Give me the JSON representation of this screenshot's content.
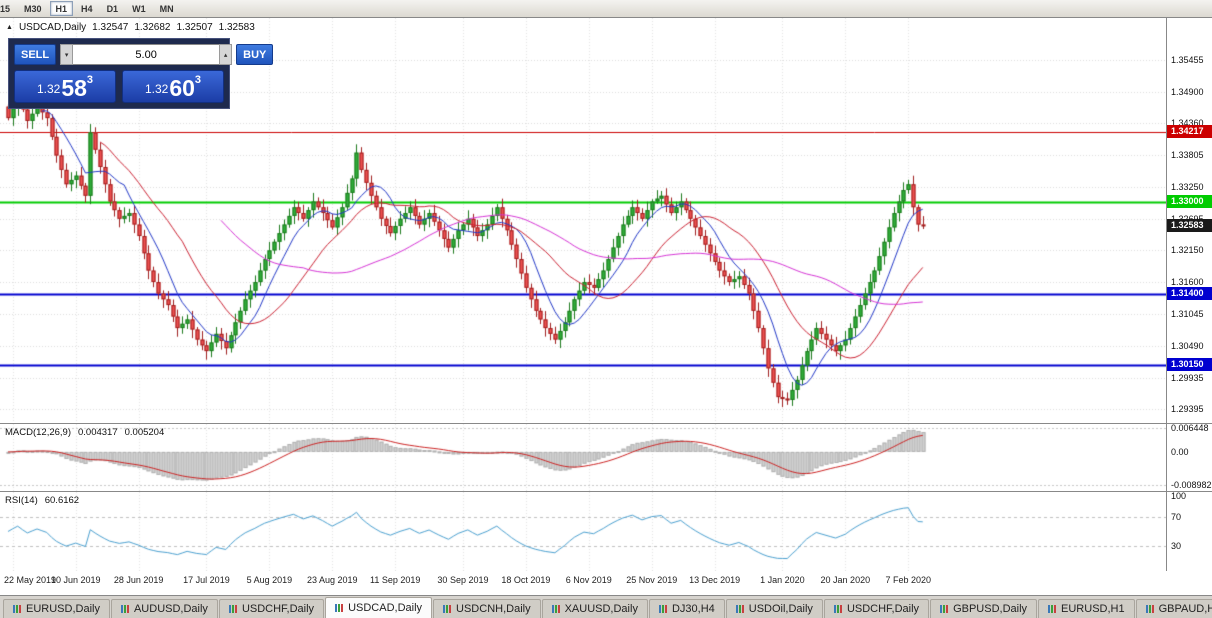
{
  "toolbar": {
    "timeframes": [
      {
        "label": "15",
        "active": false
      },
      {
        "label": "M30",
        "active": false
      },
      {
        "label": "H1",
        "active": true
      },
      {
        "label": "H4",
        "active": false
      },
      {
        "label": "D1",
        "active": false
      },
      {
        "label": "W1",
        "active": false
      },
      {
        "label": "MN",
        "active": false
      }
    ]
  },
  "chart_header": {
    "symbol": "USDCAD,Daily",
    "open": "1.32547",
    "high": "1.32682",
    "low": "1.32507",
    "close": "1.32583"
  },
  "trade_panel": {
    "sell_label": "SELL",
    "buy_label": "BUY",
    "volume": "5.00",
    "sell_price": {
      "base": "1.32",
      "big": "58",
      "sup": "3"
    },
    "buy_price": {
      "base": "1.32",
      "big": "60",
      "sup": "3"
    }
  },
  "tabs": [
    {
      "label": "EURUSD,Daily",
      "active": false
    },
    {
      "label": "AUDUSD,Daily",
      "active": false
    },
    {
      "label": "USDCHF,Daily",
      "active": false
    },
    {
      "label": "USDCAD,Daily",
      "active": true
    },
    {
      "label": "USDCNH,Daily",
      "active": false
    },
    {
      "label": "XAUUSD,Daily",
      "active": false
    },
    {
      "label": "DJ30,H4",
      "active": false
    },
    {
      "label": "USDOil,Daily",
      "active": false
    },
    {
      "label": "USDCHF,Daily",
      "active": false
    },
    {
      "label": "GBPUSD,Daily",
      "active": false
    },
    {
      "label": "EURUSD,H1",
      "active": false
    },
    {
      "label": "GBPAUD,H1",
      "active": false
    }
  ],
  "chart_data": [
    {
      "type": "candlestick",
      "title": "USDCAD,Daily",
      "price_range": {
        "top": 1.3619,
        "bottom": 1.2915
      },
      "bar_start_x": 8,
      "bar_spacing": 4.84,
      "y_ticks": [
        1.35455,
        1.349,
        1.3436,
        1.33805,
        1.3325,
        1.32695,
        1.3215,
        1.316,
        1.31045,
        1.3049,
        1.29935,
        1.29395
      ],
      "x_labels": [
        "22 May 2019",
        "10 Jun 2019",
        "28 Jun 2019",
        "17 Jul 2019",
        "5 Aug 2019",
        "23 Aug 2019",
        "11 Sep 2019",
        "30 Sep 2019",
        "18 Oct 2019",
        "6 Nov 2019",
        "25 Nov 2019",
        "13 Dec 2019",
        "1 Jan 2020",
        "20 Jan 2020",
        "7 Feb 2020"
      ],
      "levels": [
        {
          "price": 1.34217,
          "label": "1.34217",
          "color": "#cc0000",
          "width": 1
        },
        {
          "price": 1.33,
          "label": "1.33000",
          "color": "#00cc00",
          "width": 2
        },
        {
          "price": 1.314,
          "label": "1.31400",
          "color": "#0000d0",
          "width": 2
        },
        {
          "price": 1.3015,
          "label": "1.30150",
          "color": "#0000d0",
          "width": 2
        }
      ],
      "current_price": {
        "value": 1.32583,
        "label": "1.32583",
        "color": "#1a1a1a"
      },
      "moving_averages": [
        {
          "period": 8,
          "color": "#2238c8"
        },
        {
          "period": 20,
          "color": "#cc2233"
        },
        {
          "period": 45,
          "color": "#d633d6"
        }
      ],
      "up_color": "#2fae3a",
      "down_color": "#ef5050",
      "closes": [
        1.3445,
        1.34625,
        1.348,
        1.346,
        1.344,
        1.34525,
        1.3465,
        1.3455,
        1.3445,
        1.34125,
        1.338,
        1.3355,
        1.333,
        1.33375,
        1.3345,
        1.33275,
        1.331,
        1.342,
        1.339,
        1.336,
        1.333,
        1.33,
        1.3285,
        1.327,
        1.3275,
        1.328,
        1.326,
        1.324,
        1.321,
        1.318,
        1.316,
        1.314,
        1.313,
        1.312,
        1.31,
        1.308,
        1.30875,
        1.3095,
        1.30775,
        1.306,
        1.305,
        1.304,
        1.3055,
        1.307,
        1.30575,
        1.3045,
        1.30675,
        1.309,
        1.311,
        1.313,
        1.3145,
        1.316,
        1.318,
        1.32,
        1.3215,
        1.323,
        1.3245,
        1.326,
        1.3275,
        1.329,
        1.328,
        1.327,
        1.3285,
        1.33,
        1.329,
        1.328,
        1.32675,
        1.3255,
        1.32725,
        1.329,
        1.3315,
        1.334,
        1.3385,
        1.3355,
        1.33325,
        1.331,
        1.329,
        1.327,
        1.32575,
        1.3245,
        1.32575,
        1.327,
        1.328,
        1.329,
        1.3275,
        1.326,
        1.327,
        1.328,
        1.3265,
        1.325,
        1.3235,
        1.322,
        1.3235,
        1.325,
        1.326,
        1.327,
        1.3255,
        1.324,
        1.325,
        1.326,
        1.3275,
        1.329,
        1.327,
        1.325,
        1.3225,
        1.32,
        1.3175,
        1.315,
        1.313,
        1.311,
        1.3095,
        1.308,
        1.307,
        1.306,
        1.3075,
        1.309,
        1.311,
        1.313,
        1.3145,
        1.316,
        1.3155,
        1.315,
        1.3165,
        1.318,
        1.32,
        1.322,
        1.324,
        1.326,
        1.3275,
        1.329,
        1.328,
        1.327,
        1.3285,
        1.33,
        1.3305,
        1.331,
        1.3295,
        1.328,
        1.329,
        1.33,
        1.3285,
        1.327,
        1.3255,
        1.324,
        1.3225,
        1.321,
        1.3195,
        1.318,
        1.317,
        1.316,
        1.3165,
        1.317,
        1.3155,
        1.314,
        1.311,
        1.308,
        1.3045,
        1.301,
        1.2985,
        1.296,
        1.29575,
        1.2955,
        1.29725,
        1.299,
        1.3015,
        1.304,
        1.306,
        1.308,
        1.307,
        1.306,
        1.305,
        1.304,
        1.305,
        1.306,
        1.308,
        1.31,
        1.312,
        1.314,
        1.316,
        1.318,
        1.3205,
        1.323,
        1.3255,
        1.328,
        1.33,
        1.332,
        1.333,
        1.329,
        1.326,
        1.32583
      ]
    },
    {
      "type": "macd",
      "label": "MACD(12,26,9)",
      "value_main": "0.004317",
      "value_signal": "0.005204",
      "params": [
        12,
        26,
        9
      ],
      "range": {
        "top": 0.0075,
        "bottom": -0.0105
      },
      "y_labels": [
        {
          "v": 0.006448,
          "label": "0.006448"
        },
        {
          "v": 0,
          "label": "0.00"
        },
        {
          "v": -0.008982,
          "label": "-0.008982"
        }
      ],
      "level_lines": [
        0.006448,
        -0.008982
      ],
      "histogram_color": "#d0d0d0",
      "signal_color": "#cc2222"
    },
    {
      "type": "rsi",
      "label": "RSI(14)",
      "value": "60.6162",
      "period": 14,
      "range": {
        "top": 105,
        "bottom": -5
      },
      "y_labels": [
        {
          "v": 100,
          "label": "100"
        },
        {
          "v": 70,
          "label": "70"
        },
        {
          "v": 30,
          "label": "30"
        }
      ],
      "level_lines": [
        70,
        30
      ],
      "line_color": "#4aa0d0"
    }
  ]
}
